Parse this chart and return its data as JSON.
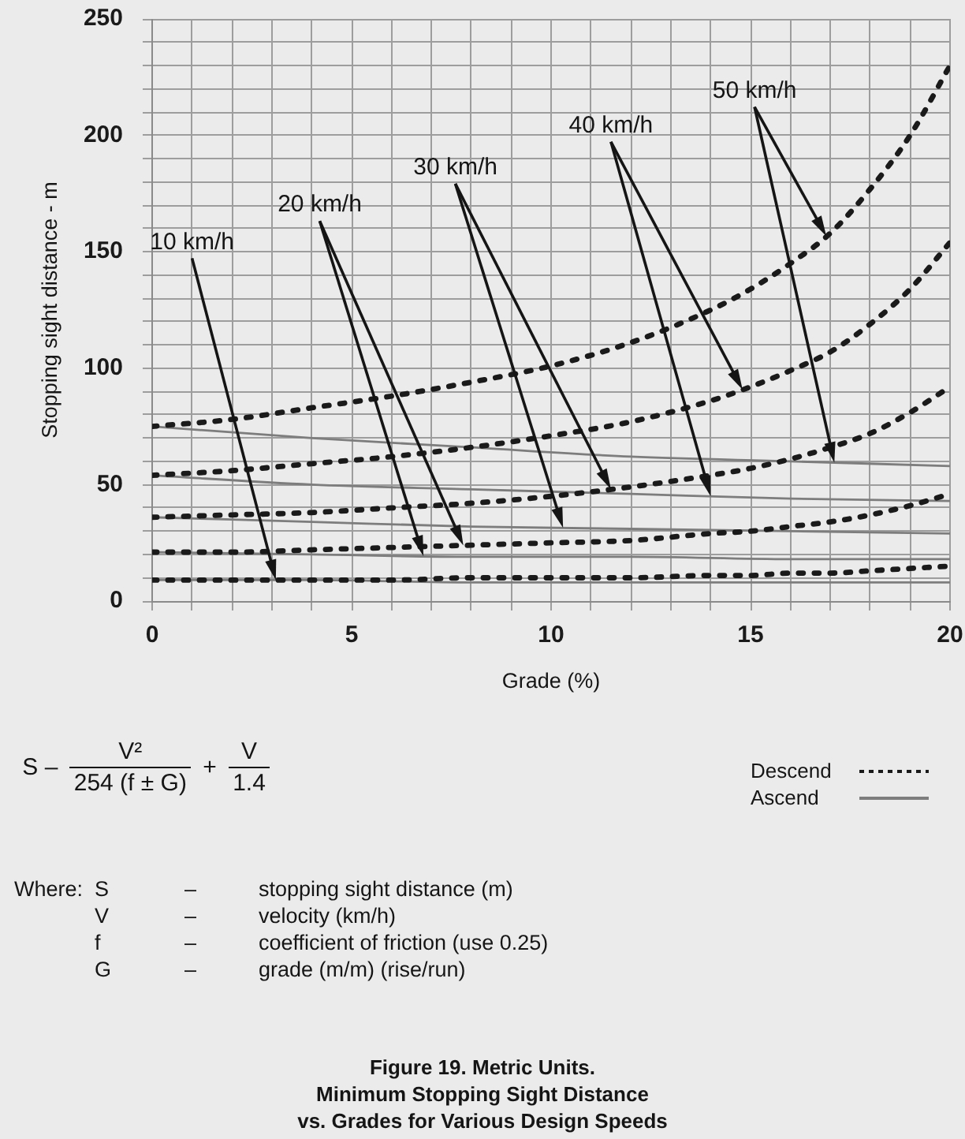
{
  "chart_data": {
    "type": "line",
    "title": "Figure 19. Metric Units.",
    "subtitle": "Minimum Stopping Sight Distance\nvs. Grades for Various Design Speeds",
    "xlabel": "Grade (%)",
    "ylabel": "Stopping sight distance - m",
    "x": [
      0,
      2,
      4,
      6,
      8,
      10,
      12,
      14,
      15,
      16,
      17,
      18,
      19,
      20
    ],
    "series": [
      {
        "name": "Descend",
        "color": "#1a1a1a",
        "line_style": "dashed",
        "values": [
          9,
          9,
          9,
          9,
          10,
          10,
          10,
          11,
          11,
          12,
          12,
          13,
          14,
          15
        ]
      },
      {
        "name": "Ascend",
        "color": "#7d7d7d",
        "line_style": "solid",
        "x": [
          0,
          4,
          8,
          12,
          16,
          20
        ],
        "values": [
          9,
          9,
          8,
          8,
          8,
          8
        ]
      },
      {
        "color": "#1a1a1a",
        "line_style": "dashed",
        "values": [
          21,
          21,
          22,
          23,
          24,
          25,
          26,
          29,
          30,
          32,
          34,
          37,
          41,
          46
        ]
      },
      {
        "color": "#7d7d7d",
        "line_style": "solid",
        "x": [
          0,
          4,
          8,
          12,
          16,
          20
        ],
        "values": [
          21,
          20,
          19,
          19,
          18,
          18
        ]
      },
      {
        "color": "#1a1a1a",
        "line_style": "dashed",
        "values": [
          36,
          37,
          38,
          40,
          42,
          45,
          49,
          54,
          57,
          61,
          66,
          72,
          81,
          92
        ]
      },
      {
        "color": "#7d7d7d",
        "line_style": "solid",
        "x": [
          0,
          4,
          8,
          12,
          16,
          20
        ],
        "values": [
          36,
          34,
          32,
          31,
          30,
          29
        ]
      },
      {
        "color": "#1a1a1a",
        "line_style": "dashed",
        "values": [
          54,
          56,
          59,
          62,
          66,
          71,
          77,
          86,
          92,
          99,
          107,
          119,
          134,
          154
        ]
      },
      {
        "color": "#7d7d7d",
        "line_style": "solid",
        "x": [
          0,
          4,
          8,
          12,
          16,
          20
        ],
        "values": [
          54,
          50,
          48,
          46,
          44,
          43
        ]
      },
      {
        "color": "#1a1a1a",
        "line_style": "dashed",
        "values": [
          75,
          78,
          83,
          88,
          94,
          101,
          111,
          125,
          134,
          145,
          158,
          177,
          200,
          230
        ]
      },
      {
        "color": "#7d7d7d",
        "line_style": "solid",
        "x": [
          0,
          4,
          8,
          12,
          16,
          20
        ],
        "values": [
          75,
          70,
          66,
          62,
          60,
          58
        ]
      }
    ],
    "xlim": [
      0,
      20
    ],
    "xticks": [
      0,
      {
        "value": 1,
        "label": null
      },
      {
        "value": 2,
        "label": null
      },
      {
        "value": 3,
        "label": null
      },
      {
        "value": 4,
        "label": null
      },
      5,
      {
        "value": 6,
        "label": null
      },
      {
        "value": 7,
        "label": null
      },
      {
        "value": 8,
        "label": null
      },
      {
        "value": 9,
        "label": null
      },
      10,
      {
        "value": 11,
        "label": null
      },
      {
        "value": 12,
        "label": null
      },
      {
        "value": 13,
        "label": null
      },
      {
        "value": 14,
        "label": null
      },
      15,
      {
        "value": 16,
        "label": null
      },
      {
        "value": 17,
        "label": null
      },
      {
        "value": 18,
        "label": null
      },
      {
        "value": 19,
        "label": null
      },
      20
    ],
    "ylim": [
      0,
      250
    ],
    "yticks": [
      0,
      {
        "value": 10,
        "label": null
      },
      {
        "value": 20,
        "label": null
      },
      {
        "value": 30,
        "label": null
      },
      {
        "value": 40,
        "label": null
      },
      50,
      {
        "value": 60,
        "label": null
      },
      {
        "value": 70,
        "label": null
      },
      {
        "value": 80,
        "label": null
      },
      {
        "value": 90,
        "label": null
      },
      100,
      {
        "value": 110,
        "label": null
      },
      {
        "value": 120,
        "label": null
      },
      {
        "value": 130,
        "label": null
      },
      {
        "value": 140,
        "label": null
      },
      150,
      {
        "value": 160,
        "label": null
      },
      {
        "value": 170,
        "label": null
      },
      {
        "value": 180,
        "label": null
      },
      {
        "value": 190,
        "label": null
      },
      200,
      {
        "value": 210,
        "label": null
      },
      {
        "value": 220,
        "label": null
      },
      {
        "value": 230,
        "label": null
      },
      {
        "value": 240,
        "label": null
      },
      250
    ],
    "grid": true,
    "legend": "bottom right",
    "annotations": [
      "10 km/h",
      "20 km/h",
      "30 km/h",
      "40 km/h",
      "50 km/h",
      "S –",
      "V²",
      "254 (f ± G)",
      "+",
      "V",
      "1.4",
      "Where:",
      "S – stopping sight distance (m)",
      "V – velocity (km/h)",
      "f – coefficient of friction (use 0.25)",
      "G – grade (m/m) (rise/run)"
    ]
  }
}
